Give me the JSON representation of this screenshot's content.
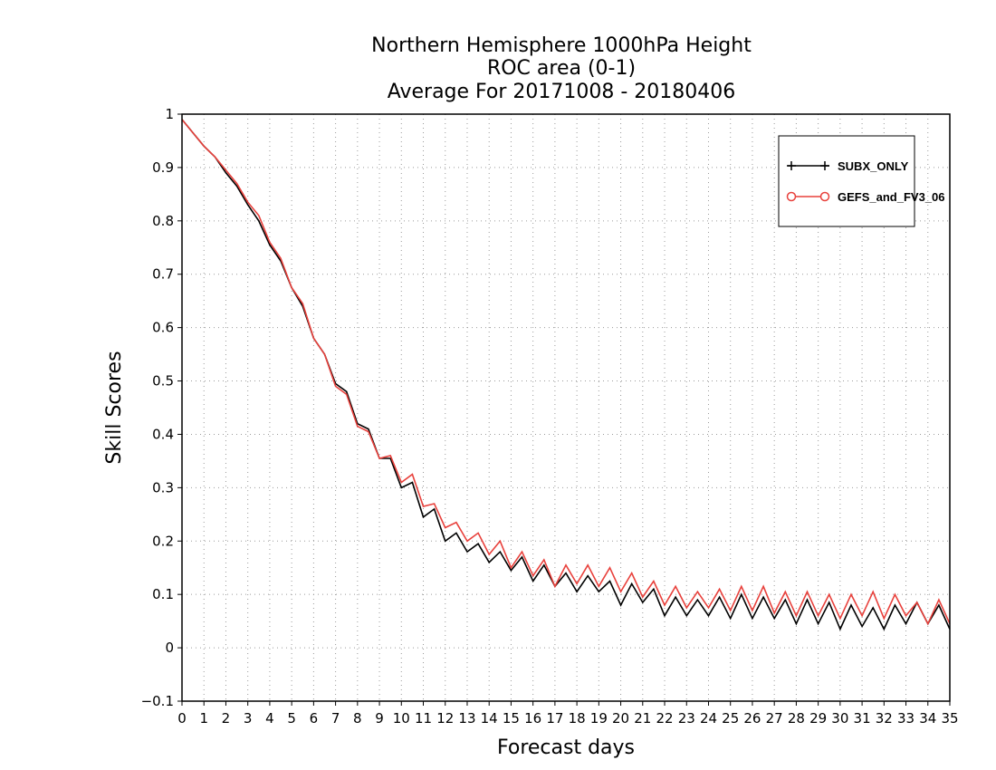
{
  "chart_data": {
    "type": "line",
    "title_lines": [
      "Northern Hemisphere 1000hPa Height",
      "ROC area (0-1)",
      "Average For 20171008 - 20180406"
    ],
    "xlabel": "Forecast days",
    "ylabel": "Skill Scores",
    "xlim": [
      0,
      35
    ],
    "ylim": [
      -0.1,
      1
    ],
    "x_ticks": [
      0,
      1,
      2,
      3,
      4,
      5,
      6,
      7,
      8,
      9,
      10,
      11,
      12,
      13,
      14,
      15,
      16,
      17,
      18,
      19,
      20,
      21,
      22,
      23,
      24,
      25,
      26,
      27,
      28,
      29,
      30,
      31,
      32,
      33,
      34,
      35
    ],
    "y_ticks": [
      -0.1,
      0,
      0.1,
      0.2,
      0.3,
      0.4,
      0.5,
      0.6,
      0.7,
      0.8,
      0.9,
      1
    ],
    "y_tick_labels": [
      "−0.1",
      "0",
      "0.1",
      "0.2",
      "0.3",
      "0.4",
      "0.5",
      "0.6",
      "0.7",
      "0.8",
      "0.9",
      "1"
    ],
    "grid": true,
    "legend_position": "top-right",
    "x": [
      0,
      0.5,
      1,
      1.5,
      2,
      2.5,
      3,
      3.5,
      4,
      4.5,
      5,
      5.5,
      6,
      6.5,
      7,
      7.5,
      8,
      8.5,
      9,
      9.5,
      10,
      10.5,
      11,
      11.5,
      12,
      12.5,
      13,
      13.5,
      14,
      14.5,
      15,
      15.5,
      16,
      16.5,
      17,
      17.5,
      18,
      18.5,
      19,
      19.5,
      20,
      20.5,
      21,
      21.5,
      22,
      22.5,
      23,
      23.5,
      24,
      24.5,
      25,
      25.5,
      26,
      26.5,
      27,
      27.5,
      28,
      28.5,
      29,
      29.5,
      30,
      30.5,
      31,
      31.5,
      32,
      32.5,
      33,
      33.5,
      34,
      34.5,
      35
    ],
    "series": [
      {
        "name": "SUBX_ONLY",
        "color": "#000000",
        "marker": "plus",
        "values": [
          0.99,
          0.965,
          0.94,
          0.92,
          0.89,
          0.865,
          0.83,
          0.8,
          0.755,
          0.725,
          0.675,
          0.64,
          0.58,
          0.55,
          0.495,
          0.48,
          0.42,
          0.41,
          0.355,
          0.355,
          0.3,
          0.31,
          0.245,
          0.26,
          0.2,
          0.215,
          0.18,
          0.195,
          0.16,
          0.18,
          0.145,
          0.17,
          0.125,
          0.155,
          0.115,
          0.14,
          0.105,
          0.135,
          0.105,
          0.125,
          0.08,
          0.12,
          0.085,
          0.11,
          0.06,
          0.095,
          0.06,
          0.09,
          0.06,
          0.095,
          0.055,
          0.1,
          0.055,
          0.095,
          0.055,
          0.09,
          0.045,
          0.09,
          0.045,
          0.085,
          0.035,
          0.08,
          0.04,
          0.075,
          0.035,
          0.08,
          0.045,
          0.085,
          0.045,
          0.08,
          0.035
        ]
      },
      {
        "name": "GEFS_and_FV3_06",
        "color": "#e8413c",
        "marker": "circle",
        "values": [
          0.99,
          0.965,
          0.94,
          0.92,
          0.895,
          0.87,
          0.835,
          0.81,
          0.76,
          0.73,
          0.675,
          0.645,
          0.58,
          0.55,
          0.49,
          0.475,
          0.415,
          0.405,
          0.355,
          0.36,
          0.31,
          0.325,
          0.265,
          0.27,
          0.225,
          0.235,
          0.2,
          0.215,
          0.175,
          0.2,
          0.15,
          0.18,
          0.135,
          0.165,
          0.115,
          0.155,
          0.12,
          0.155,
          0.115,
          0.15,
          0.105,
          0.14,
          0.095,
          0.125,
          0.08,
          0.115,
          0.075,
          0.105,
          0.075,
          0.11,
          0.07,
          0.115,
          0.07,
          0.115,
          0.065,
          0.105,
          0.06,
          0.105,
          0.06,
          0.1,
          0.055,
          0.1,
          0.06,
          0.105,
          0.055,
          0.1,
          0.06,
          0.085,
          0.045,
          0.09,
          0.045
        ]
      }
    ]
  }
}
